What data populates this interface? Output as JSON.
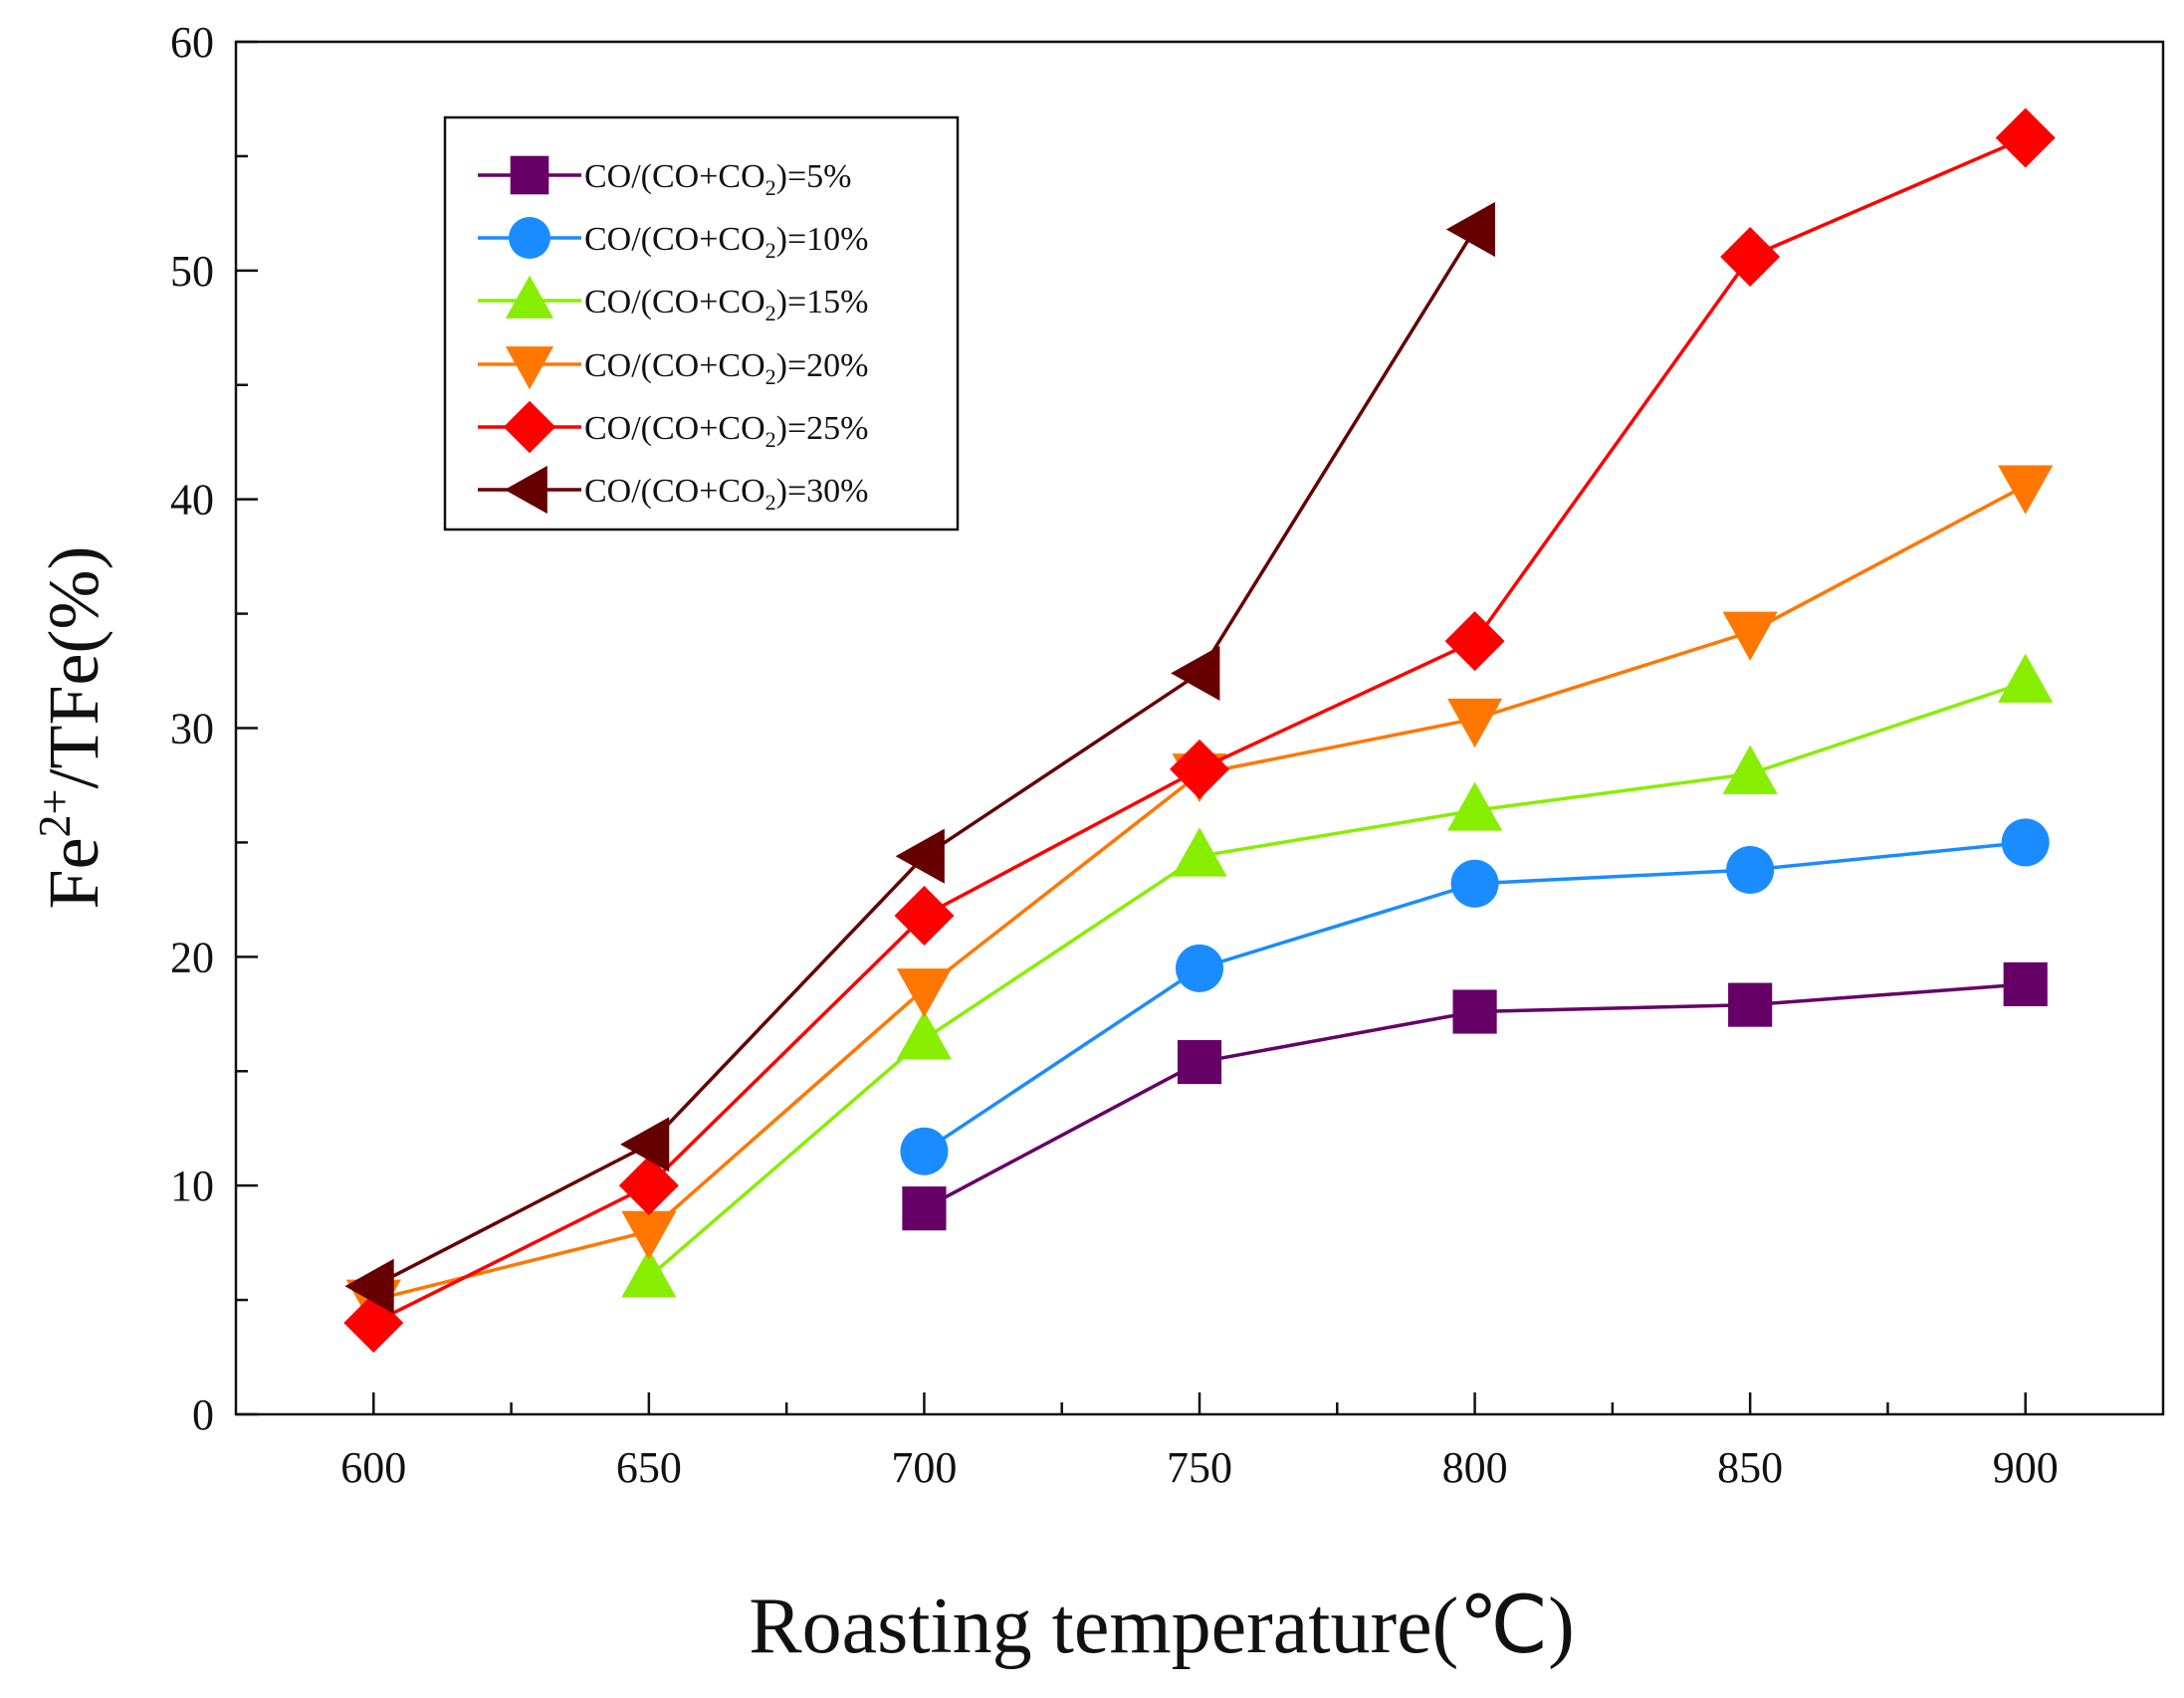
{
  "chart_data": {
    "type": "line",
    "title": "",
    "xlabel": "Roasting temperature(℃)",
    "ylabel": "Fe2+/TFe(%)",
    "ylabel_parts": {
      "base": "Fe",
      "sup": "2+",
      "rest": "/TFe(%)"
    },
    "xlim": [
      575,
      925
    ],
    "ylim": [
      0,
      60
    ],
    "x_ticks": [
      600,
      650,
      700,
      750,
      800,
      850,
      900
    ],
    "y_ticks": [
      0,
      10,
      20,
      30,
      40,
      50,
      60
    ],
    "grid": false,
    "legend_position": "top-left",
    "series": [
      {
        "name": "CO/(CO+CO2)=5%",
        "label_parts": {
          "pre": "CO/(CO+CO",
          "sub": "2",
          "post": ")=5%"
        },
        "color": "#660066",
        "marker": "square",
        "x": [
          700,
          750,
          800,
          850,
          900
        ],
        "values": [
          9.0,
          15.4,
          17.6,
          17.9,
          18.8
        ]
      },
      {
        "name": "CO/(CO+CO2)=10%",
        "label_parts": {
          "pre": "CO/(CO+CO",
          "sub": "2",
          "post": ")=10%"
        },
        "color": "#1a8cff",
        "marker": "circle",
        "x": [
          700,
          750,
          800,
          850,
          900
        ],
        "values": [
          11.5,
          19.5,
          23.2,
          23.8,
          25.0
        ]
      },
      {
        "name": "CO/(CO+CO2)=15%",
        "label_parts": {
          "pre": "CO/(CO+CO",
          "sub": "2",
          "post": ")=15%"
        },
        "color": "#88ee00",
        "marker": "triangle-up",
        "x": [
          650,
          700,
          750,
          800,
          850,
          900
        ],
        "values": [
          6.0,
          16.4,
          24.4,
          26.4,
          28.0,
          32.0
        ]
      },
      {
        "name": "CO/(CO+CO2)=20%",
        "label_parts": {
          "pre": "CO/(CO+CO",
          "sub": "2",
          "post": ")=20%"
        },
        "color": "#ff7700",
        "marker": "triangle-down",
        "x": [
          600,
          650,
          700,
          750,
          800,
          850,
          900
        ],
        "values": [
          5.0,
          8.0,
          18.6,
          28.0,
          30.4,
          34.2,
          40.6
        ]
      },
      {
        "name": "CO/(CO+CO2)=25%",
        "label_parts": {
          "pre": "CO/(CO+CO",
          "sub": "2",
          "post": ")=25%"
        },
        "color": "#ff0000",
        "marker": "diamond",
        "x": [
          600,
          650,
          700,
          750,
          800,
          850,
          900
        ],
        "values": [
          4.0,
          10.0,
          21.8,
          28.2,
          33.8,
          50.6,
          55.8
        ]
      },
      {
        "name": "CO/(CO+CO2)=30%",
        "label_parts": {
          "pre": "CO/(CO+CO",
          "sub": "2",
          "post": ")=30%"
        },
        "color": "#660000",
        "marker": "triangle-left",
        "x": [
          600,
          650,
          700,
          750,
          800
        ],
        "values": [
          5.6,
          11.8,
          24.4,
          32.4,
          51.8
        ]
      }
    ]
  }
}
